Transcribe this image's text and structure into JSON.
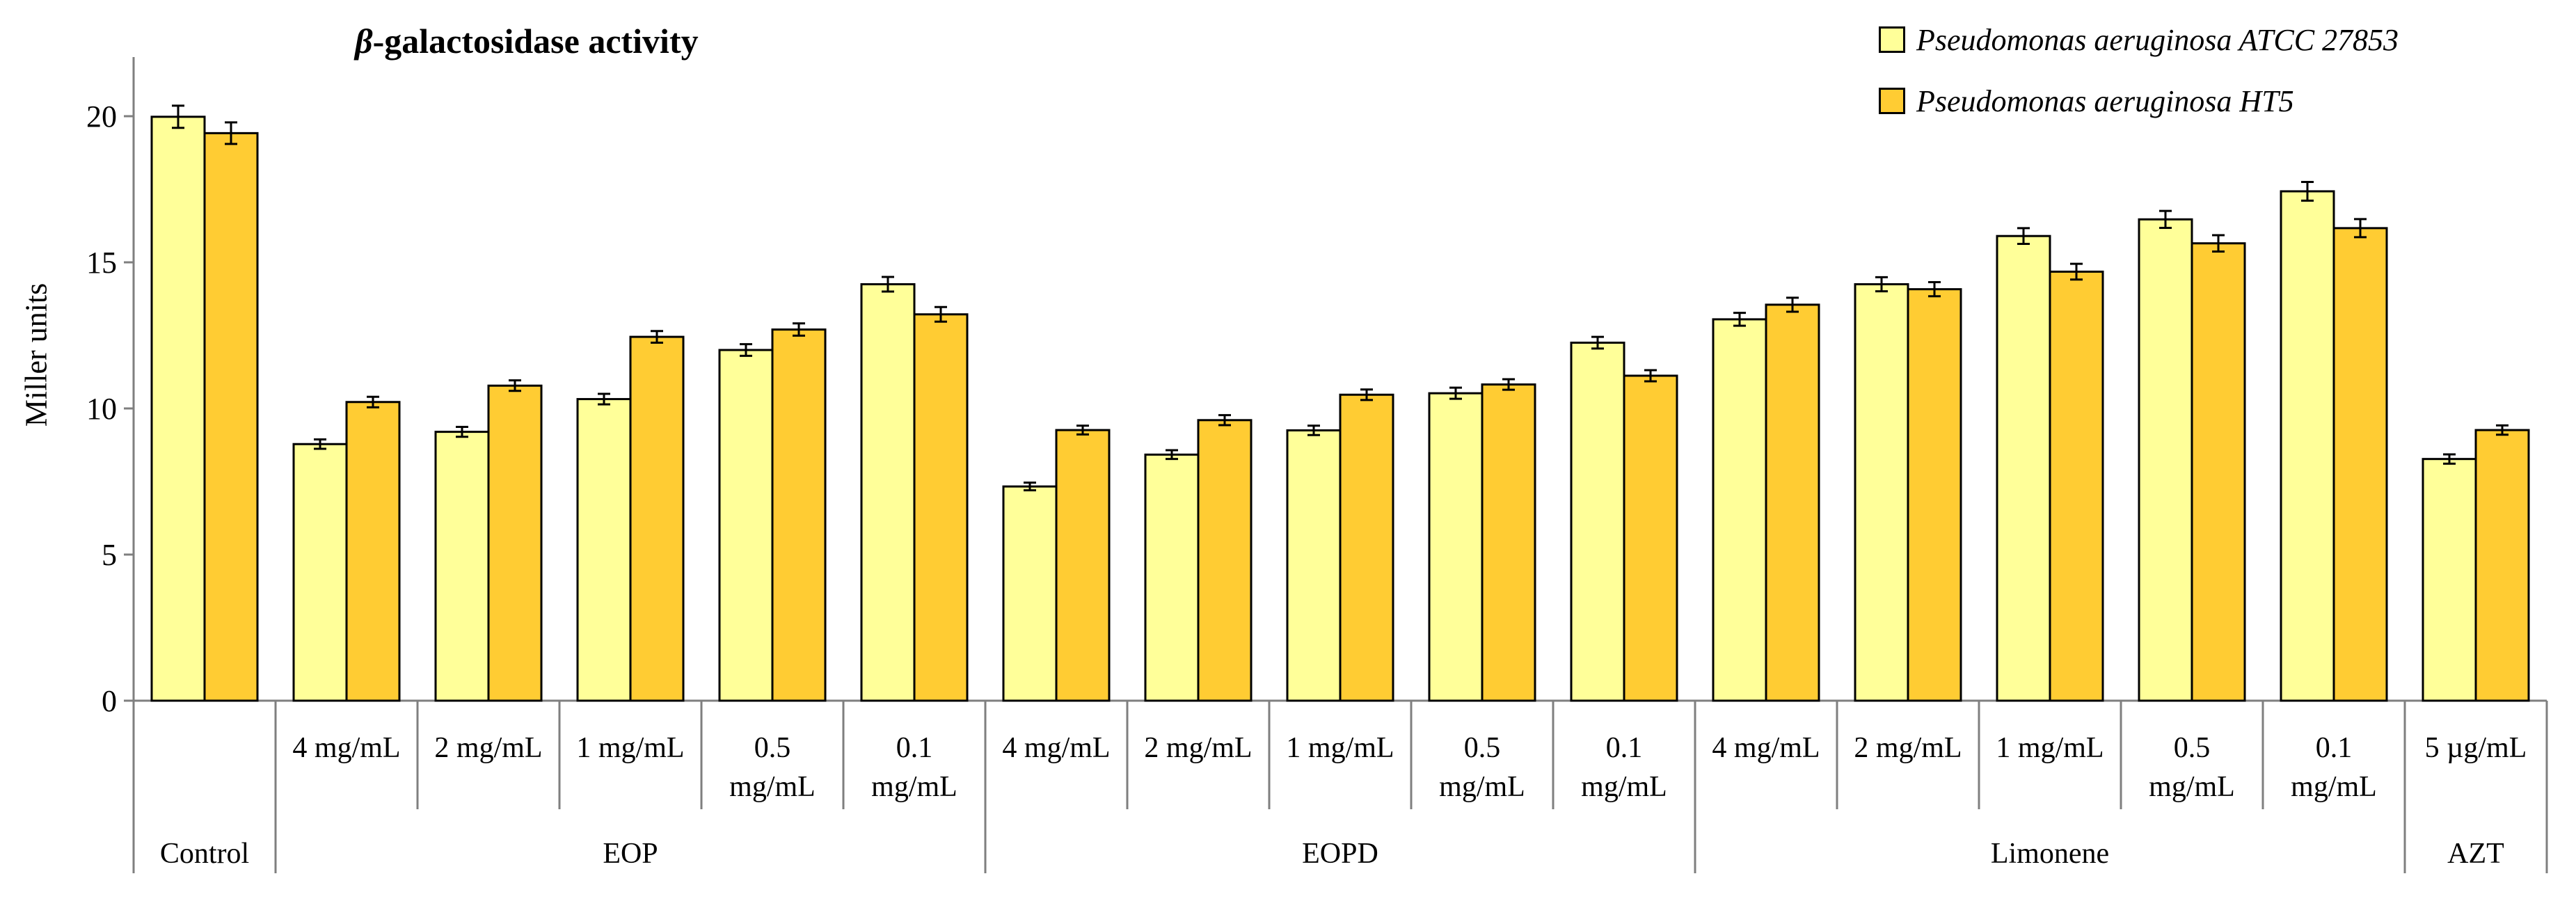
{
  "chart_data": {
    "type": "bar",
    "title_prefix": "β",
    "title_rest": "-galactosidase activity",
    "ylabel": "Miller units",
    "ylim": [
      0,
      20
    ],
    "yticks": [
      0,
      5,
      10,
      15,
      20
    ],
    "grid": false,
    "legend_position": "top-right",
    "categories": [
      {
        "label": [
          "",
          ""
        ],
        "group": "Control"
      },
      {
        "label": [
          "4 mg/mL",
          ""
        ],
        "group": "EOP"
      },
      {
        "label": [
          "2 mg/mL",
          ""
        ],
        "group": "EOP"
      },
      {
        "label": [
          "1 mg/mL",
          ""
        ],
        "group": "EOP"
      },
      {
        "label": [
          "0.5",
          "mg/mL"
        ],
        "group": "EOP"
      },
      {
        "label": [
          "0.1",
          "mg/mL"
        ],
        "group": "EOP"
      },
      {
        "label": [
          "4 mg/mL",
          ""
        ],
        "group": "EOPD"
      },
      {
        "label": [
          "2 mg/mL",
          ""
        ],
        "group": "EOPD"
      },
      {
        "label": [
          "1 mg/mL",
          ""
        ],
        "group": "EOPD"
      },
      {
        "label": [
          "0.5",
          "mg/mL"
        ],
        "group": "EOPD"
      },
      {
        "label": [
          "0.1",
          "mg/mL"
        ],
        "group": "EOPD"
      },
      {
        "label": [
          "4 mg/mL",
          ""
        ],
        "group": "Limonene"
      },
      {
        "label": [
          "2 mg/mL",
          ""
        ],
        "group": "Limonene"
      },
      {
        "label": [
          "1 mg/mL",
          ""
        ],
        "group": "Limonene"
      },
      {
        "label": [
          "0.5",
          "mg/mL"
        ],
        "group": "Limonene"
      },
      {
        "label": [
          "0.1",
          "mg/mL"
        ],
        "group": "Limonene"
      },
      {
        "label": [
          "5 µg/mL",
          ""
        ],
        "group": "AZT"
      }
    ],
    "groups": [
      "Control",
      "EOP",
      "EOPD",
      "Limonene",
      "AZT"
    ],
    "series": [
      {
        "name": "Pseudomonas aeruginosa ATCC 27853",
        "color": "#FFFF99",
        "values": [
          19.98,
          8.78,
          9.2,
          10.32,
          12.0,
          14.25,
          7.33,
          8.42,
          9.25,
          10.52,
          12.25,
          13.05,
          14.25,
          15.9,
          16.47,
          17.43,
          8.27
        ],
        "errors": [
          0.38,
          0.16,
          0.17,
          0.18,
          0.2,
          0.25,
          0.13,
          0.15,
          0.16,
          0.19,
          0.2,
          0.22,
          0.24,
          0.27,
          0.29,
          0.32,
          0.16
        ]
      },
      {
        "name": "Pseudomonas aeruginosa HT5",
        "color": "#FFCC33",
        "values": [
          19.42,
          10.22,
          10.78,
          12.45,
          12.7,
          13.22,
          9.26,
          9.6,
          10.47,
          10.82,
          11.12,
          13.55,
          14.08,
          14.68,
          15.65,
          16.17,
          9.26
        ],
        "errors": [
          0.37,
          0.18,
          0.18,
          0.2,
          0.21,
          0.25,
          0.15,
          0.17,
          0.18,
          0.18,
          0.19,
          0.24,
          0.24,
          0.27,
          0.28,
          0.31,
          0.16
        ]
      }
    ]
  }
}
